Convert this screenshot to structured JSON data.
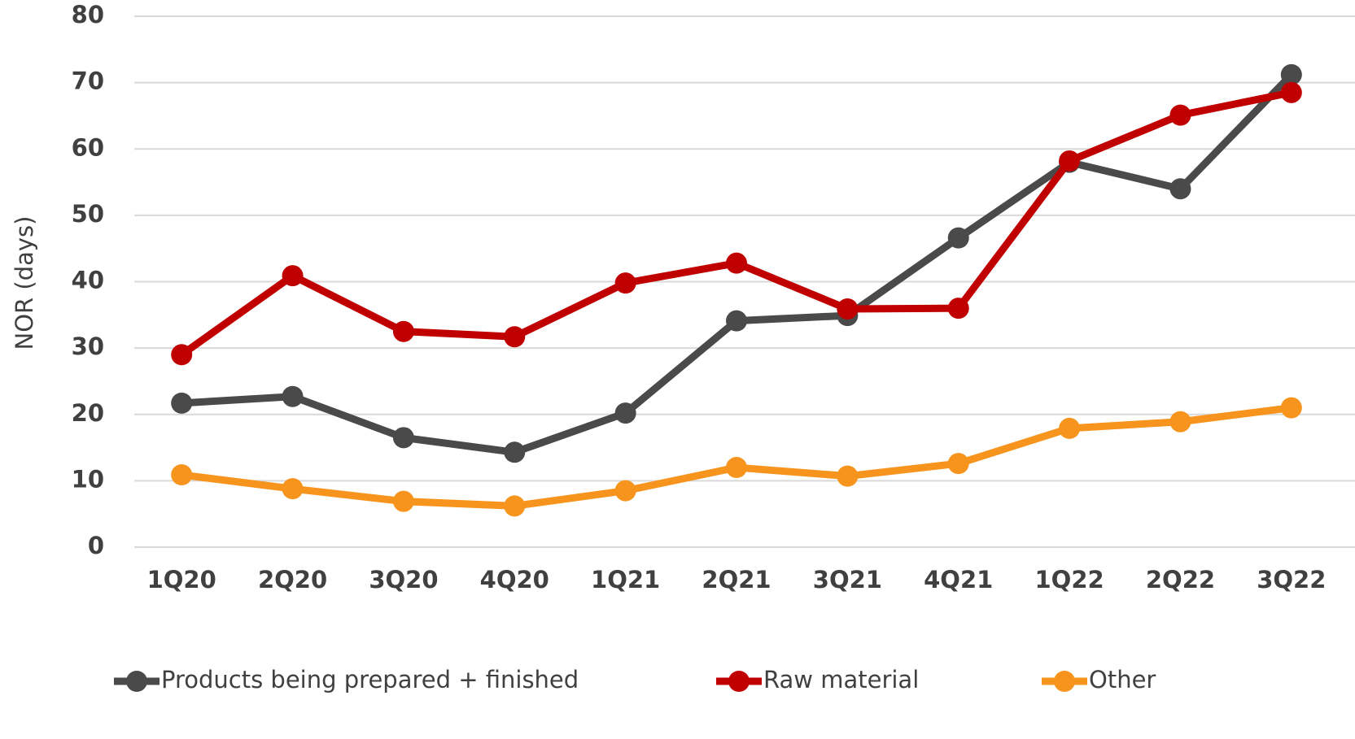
{
  "chart_data": {
    "type": "line",
    "y_label": "NOR (days)",
    "categories": [
      "1Q20",
      "2Q20",
      "3Q20",
      "4Q20",
      "1Q21",
      "2Q21",
      "3Q21",
      "4Q21",
      "1Q22",
      "2Q22",
      "3Q22"
    ],
    "series": [
      {
        "name": "Products being prepared + finished",
        "color": "#4a4a4a",
        "values": [
          21.7,
          22.7,
          16.5,
          14.3,
          20.2,
          34.1,
          34.9,
          46.6,
          58.0,
          54.0,
          71.2
        ]
      },
      {
        "name": "Raw material",
        "color": "#c00000",
        "values": [
          29.0,
          40.9,
          32.5,
          31.7,
          39.8,
          42.8,
          35.9,
          36.0,
          58.2,
          65.1,
          68.5
        ]
      },
      {
        "name": "Other",
        "color": "#f7941d",
        "values": [
          10.9,
          8.8,
          6.9,
          6.2,
          8.5,
          12.0,
          10.7,
          12.6,
          17.9,
          18.9,
          21.0
        ]
      }
    ],
    "ylim": [
      0,
      80
    ],
    "yticks": [
      0,
      10,
      20,
      30,
      40,
      50,
      60,
      70,
      80
    ],
    "grid": true
  }
}
